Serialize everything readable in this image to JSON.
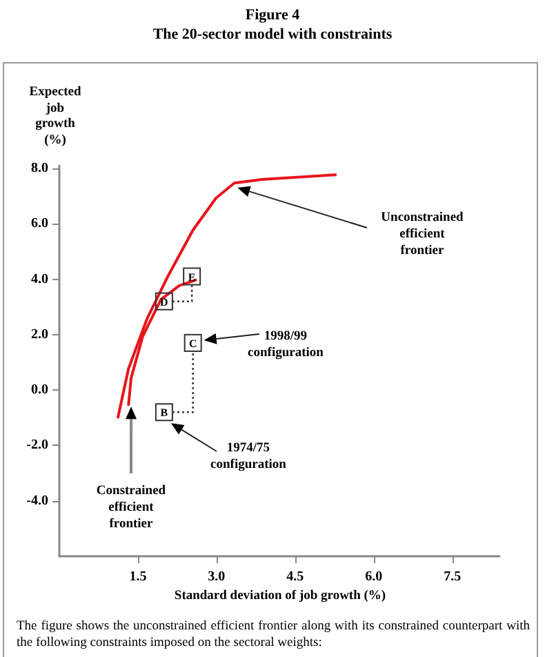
{
  "chart_data": {
    "type": "line",
    "title": "Figure 4",
    "subtitle": "The 20-sector model with constraints",
    "xlabel": "Standard deviation of job growth (%)",
    "ylabel": "Expected job growth (%)",
    "xlim": [
      0,
      8.4
    ],
    "ylim": [
      -6,
      8.1
    ],
    "xticks": [
      1.5,
      {
        "value": 3,
        "label": "3.0"
      },
      4.5,
      {
        "value": 6,
        "label": "6.0"
      },
      7.5
    ],
    "yticks": [
      {
        "value": 8,
        "label": "8.0"
      },
      {
        "value": 6,
        "label": "6.0"
      },
      {
        "value": 4,
        "label": "4.0"
      },
      {
        "value": 2,
        "label": "2.0"
      },
      {
        "value": 0,
        "label": "0.0"
      },
      {
        "value": -2,
        "label": "-2.0"
      },
      {
        "value": -4,
        "label": "-4.0"
      }
    ],
    "grid": false,
    "marker": "none",
    "line_style": "solid",
    "series": [
      {
        "color": "#e8141c",
        "x": [
          1.12,
          1.32,
          1.68,
          2.07,
          2.55,
          2.99,
          3.34,
          3.87,
          5.27
        ],
        "values": [
          -0.98,
          0.77,
          2.6,
          4.1,
          5.77,
          6.93,
          7.47,
          7.6,
          7.77
        ]
      },
      {
        "color": "#e8141c",
        "x": [
          1.32,
          1.37,
          1.59,
          1.94,
          2.29,
          2.6
        ],
        "values": [
          -0.53,
          0.43,
          1.93,
          3.27,
          3.77,
          3.97
        ]
      }
    ],
    "annotations": [
      {
        "text": "Unconstrained efficient frontier",
        "x": 3.4,
        "y": 7.3
      },
      "1998/99 configuration",
      "1974/75 configuration",
      {
        "text": "Constrained efficient frontier",
        "x": 1.37,
        "y": -0.6
      },
      {
        "text": "B",
        "x": 2.0,
        "y": -0.8
      },
      {
        "text": "C",
        "x": 2.55,
        "y": 1.7
      },
      {
        "text": "D",
        "x": 2.0,
        "y": 3.2
      },
      {
        "text": "E",
        "x": 2.53,
        "y": 4.1
      },
      "The figure shows the unconstrained efficient frontier along with its constrained counterpart with the following constraints imposed on the sectoral weights:"
    ]
  }
}
